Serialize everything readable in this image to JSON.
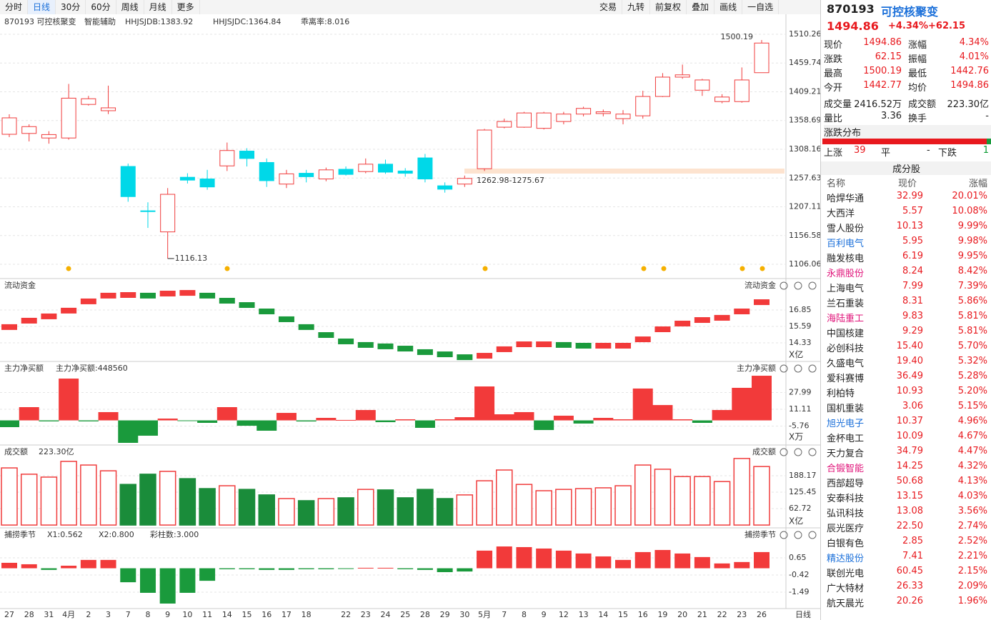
{
  "toolbar": {
    "left": [
      "分时",
      "日线",
      "30分",
      "60分",
      "周线",
      "月线",
      "更多"
    ],
    "right": [
      "交易",
      "九转",
      "前复权",
      "叠加",
      "画线",
      "一自选"
    ]
  },
  "info": {
    "code_name": "870193 可控核聚变",
    "assist": "智能辅助",
    "items": [
      {
        "text": "HHJSJDB:1383.92",
        "color": "#e08a1e"
      },
      {
        "text": "HHJSJDC:1364.84",
        "color": "#e8191e"
      },
      {
        "text": "乖离率:8.016",
        "color": "#e08a1e"
      }
    ]
  },
  "price_chart": {
    "type": "candlestick",
    "categories": [
      "27",
      "28",
      "31",
      "4月",
      "2",
      "3",
      "7",
      "8",
      "9",
      "10",
      "11",
      "14",
      "15",
      "16",
      "17",
      "18",
      null,
      "22",
      "23",
      "24",
      "25",
      "28",
      "29",
      "30",
      "5月",
      "7",
      "8",
      "9",
      "12",
      "13",
      "14",
      "15",
      "16",
      "19",
      "20",
      "21",
      "22",
      "23",
      "26"
    ],
    "open": [
      1334.5,
      1336,
      1328,
      1328,
      1387,
      1376,
      1278,
      1200,
      1163,
      1259,
      1256,
      1279,
      1305,
      1285,
      1247,
      1266,
      1256,
      1273,
      1269,
      1282,
      1270,
      1293,
      1244,
      1247,
      1274,
      1347,
      1347,
      1345,
      1357,
      1370,
      1371,
      1362,
      1367,
      1401,
      1435,
      1412,
      1392,
      1392,
      1442.77
    ],
    "high": [
      1369.7,
      1352,
      1340,
      1423,
      1402,
      1420,
      1283,
      1215,
      1240,
      1266,
      1272,
      1320,
      1310,
      1292,
      1272,
      1272,
      1276,
      1278,
      1292,
      1290,
      1275,
      1300,
      1250,
      1262,
      1344,
      1362,
      1374,
      1374,
      1374,
      1383,
      1378,
      1377,
      1411,
      1442,
      1457,
      1432,
      1405,
      1452,
      1500.19
    ],
    "low": [
      1329.5,
      1322,
      1318,
      1325,
      1385,
      1370,
      1216,
      1170,
      1116.13,
      1248,
      1237,
      1270,
      1278,
      1242,
      1240,
      1250,
      1252,
      1262,
      1266,
      1265,
      1260,
      1250,
      1232,
      1242,
      1270,
      1345,
      1346,
      1343,
      1352,
      1366,
      1366,
      1352,
      1362,
      1400,
      1432,
      1402,
      1389,
      1390,
      1442.76
    ],
    "close": [
      1363.4,
      1348,
      1334,
      1398,
      1397,
      1381,
      1225,
      1199,
      1229,
      1254,
      1242,
      1306,
      1292,
      1253,
      1265,
      1260,
      1272,
      1264,
      1282,
      1268,
      1266,
      1256,
      1238,
      1257,
      1342,
      1357,
      1372,
      1372,
      1370,
      1380,
      1374,
      1370,
      1401,
      1435,
      1439,
      1430,
      1400,
      1430,
      1494.86
    ],
    "ylim": [
      1106.06,
      1510.26
    ],
    "yticks": [
      1510.26,
      1459.74,
      1409.21,
      1358.69,
      1308.16,
      1257.63,
      1207.11,
      1156.58,
      1106.06
    ],
    "annotations": {
      "high_label": "1500.19",
      "low_label": "1116.13",
      "range_label": "1262.98-1275.67"
    }
  },
  "panels": [
    {
      "style": "steps",
      "title": "流动资金",
      "title_right": "流动资金",
      "unit": "X亿",
      "ylim": [
        12.96,
        19.15
      ],
      "yticks": [
        16.85,
        15.59,
        14.33
      ],
      "values": [
        15.54,
        16.03,
        16.36,
        16.8,
        17.51,
        17.95,
        18,
        17.95,
        18.11,
        18.16,
        17.95,
        17.56,
        17.23,
        16.74,
        16.14,
        15.54,
        14.93,
        14.44,
        14.17,
        14.06,
        13.89,
        13.62,
        13.45,
        13.23,
        13.34,
        13.84,
        14.22,
        14.22,
        14.17,
        14.11,
        14.11,
        14.11,
        14.6,
        15.37,
        15.81,
        16.08,
        16.25,
        16.74,
        17.45
      ]
    },
    {
      "style": "bars",
      "title": "主力净买额",
      "title_right": "主力净买额",
      "legend": [
        {
          "text": "主力净买额:448560",
          "color": "#e8191e"
        }
      ],
      "unit": "X万",
      "ylim": [
        -22.6,
        57.8
      ],
      "yticks": [
        27.99,
        11.11,
        -5.76
      ],
      "values": [
        -6.8,
        13.3,
        -1,
        42,
        -1,
        8.3,
        -22.6,
        -15.4,
        1.8,
        -0.4,
        -2.5,
        13.3,
        -5.4,
        -10.4,
        7.5,
        -1.1,
        2.5,
        0.4,
        10.4,
        -1.8,
        1.1,
        -7.5,
        1.1,
        3.2,
        34.1,
        6.1,
        8.3,
        -9.7,
        4.7,
        -3.2,
        2.5,
        1.1,
        32,
        15.4,
        1.1,
        -2.5,
        10.4,
        32.7,
        44.86
      ]
    },
    {
      "style": "volume",
      "title": "成交额",
      "title_right": "成交额",
      "legend": [
        {
          "text": "223.30亿",
          "color": "#222"
        }
      ],
      "unit": "X亿",
      "ylim": [
        -8,
        300
      ],
      "yticks": [
        188.17,
        125.45,
        62.72
      ],
      "values": [
        218,
        194,
        183,
        243,
        229,
        207,
        155,
        194,
        205,
        177,
        139,
        150,
        136,
        115,
        101,
        93,
        101,
        104,
        136,
        134,
        104,
        136,
        101,
        115,
        169,
        210,
        155,
        131,
        136,
        139,
        142,
        150,
        229,
        213,
        185,
        185,
        166,
        254,
        223.3
      ]
    },
    {
      "style": "season",
      "title": "捕捞季节",
      "title_right": "捕捞季节",
      "legend": [
        {
          "text": "X1:0.562",
          "color": "#e08a1e"
        },
        {
          "text": "X2:0.800",
          "color": "#d61fd6"
        },
        {
          "text": "彩柱数:3.000",
          "color": "#e8191e"
        }
      ],
      "ylim": [
        -2.2,
        2.43
      ],
      "yticks": [
        0.65,
        -0.42,
        -1.49
      ],
      "values": [
        0.34,
        0.25,
        -0.1,
        0.16,
        0.52,
        0.52,
        -0.87,
        -1.53,
        -2.2,
        -1.53,
        -0.78,
        -0.06,
        -0.06,
        -0.1,
        -0.1,
        -0.06,
        -0.06,
        -0.02,
        0.03,
        0.03,
        -0.06,
        -0.1,
        -0.24,
        -0.2,
        1.1,
        1.36,
        1.32,
        1.23,
        1.1,
        0.92,
        0.74,
        0.52,
        1.01,
        1.14,
        0.92,
        0.7,
        0.3,
        0.39,
        1.01
      ]
    }
  ],
  "period_label": "日线",
  "quote": {
    "code": "870193",
    "name": "可控核聚变",
    "price": "1494.86",
    "change_pct": "+4.34%",
    "change": "+62.15",
    "fields": [
      [
        "现价",
        "1494.86",
        "涨幅",
        "4.34%"
      ],
      [
        "涨跌",
        "62.15",
        "振幅",
        "4.01%"
      ],
      [
        "最高",
        "1500.19",
        "最低",
        "1442.76"
      ],
      [
        "今开",
        "1442.77",
        "均价",
        "1494.86"
      ],
      [
        "成交量",
        "2416.52万",
        "成交额",
        "223.30亿"
      ],
      [
        "量比",
        "3.36",
        "换手",
        "-"
      ]
    ],
    "distribution": {
      "title": "涨跌分布",
      "up_label": "上涨",
      "up": 39,
      "flat_label": "平",
      "flat": "-",
      "down_label": "下跌",
      "down": 1
    },
    "constituents": {
      "title": "成分股",
      "headers": [
        "名称",
        "现价",
        "涨幅"
      ],
      "rows": [
        {
          "name": "哈焊华通",
          "price": "32.99",
          "change": "20.01%"
        },
        {
          "name": "大西洋",
          "price": "5.57",
          "change": "10.08%"
        },
        {
          "name": "雪人股份",
          "price": "10.13",
          "change": "9.99%"
        },
        {
          "name": "百利电气",
          "price": "5.95",
          "change": "9.98%",
          "color": "#1a6fd9"
        },
        {
          "name": "融发核电",
          "price": "6.19",
          "change": "9.95%"
        },
        {
          "name": "永鼎股份",
          "price": "8.24",
          "change": "8.42%",
          "color": "#e0147a"
        },
        {
          "name": "上海电气",
          "price": "7.99",
          "change": "7.39%"
        },
        {
          "name": "兰石重装",
          "price": "8.31",
          "change": "5.86%"
        },
        {
          "name": "海陆重工",
          "price": "9.83",
          "change": "5.81%",
          "color": "#e0147a"
        },
        {
          "name": "中国核建",
          "price": "9.29",
          "change": "5.81%"
        },
        {
          "name": "必创科技",
          "price": "15.40",
          "change": "5.70%"
        },
        {
          "name": "久盛电气",
          "price": "19.40",
          "change": "5.32%"
        },
        {
          "name": "爱科赛博",
          "price": "36.49",
          "change": "5.28%"
        },
        {
          "name": "利柏特",
          "price": "10.93",
          "change": "5.20%"
        },
        {
          "name": "国机重装",
          "price": "3.06",
          "change": "5.15%"
        },
        {
          "name": "旭光电子",
          "price": "10.37",
          "change": "4.96%",
          "color": "#1a6fd9"
        },
        {
          "name": "金杯电工",
          "price": "10.09",
          "change": "4.67%"
        },
        {
          "name": "天力复合",
          "price": "34.79",
          "change": "4.47%"
        },
        {
          "name": "合锻智能",
          "price": "14.25",
          "change": "4.32%",
          "color": "#e0147a"
        },
        {
          "name": "西部超导",
          "price": "50.68",
          "change": "4.13%"
        },
        {
          "name": "安泰科技",
          "price": "13.15",
          "change": "4.03%"
        },
        {
          "name": "弘讯科技",
          "price": "13.08",
          "change": "3.56%"
        },
        {
          "name": "辰光医疗",
          "price": "22.50",
          "change": "2.74%"
        },
        {
          "name": "白银有色",
          "price": "2.85",
          "change": "2.52%"
        },
        {
          "name": "精达股份",
          "price": "7.41",
          "change": "2.21%",
          "color": "#1a6fd9"
        },
        {
          "name": "联创光电",
          "price": "60.45",
          "change": "2.15%"
        },
        {
          "name": "广大特材",
          "price": "26.33",
          "change": "2.09%"
        },
        {
          "name": "航天晨光",
          "price": "20.26",
          "change": "1.96%"
        }
      ]
    }
  }
}
